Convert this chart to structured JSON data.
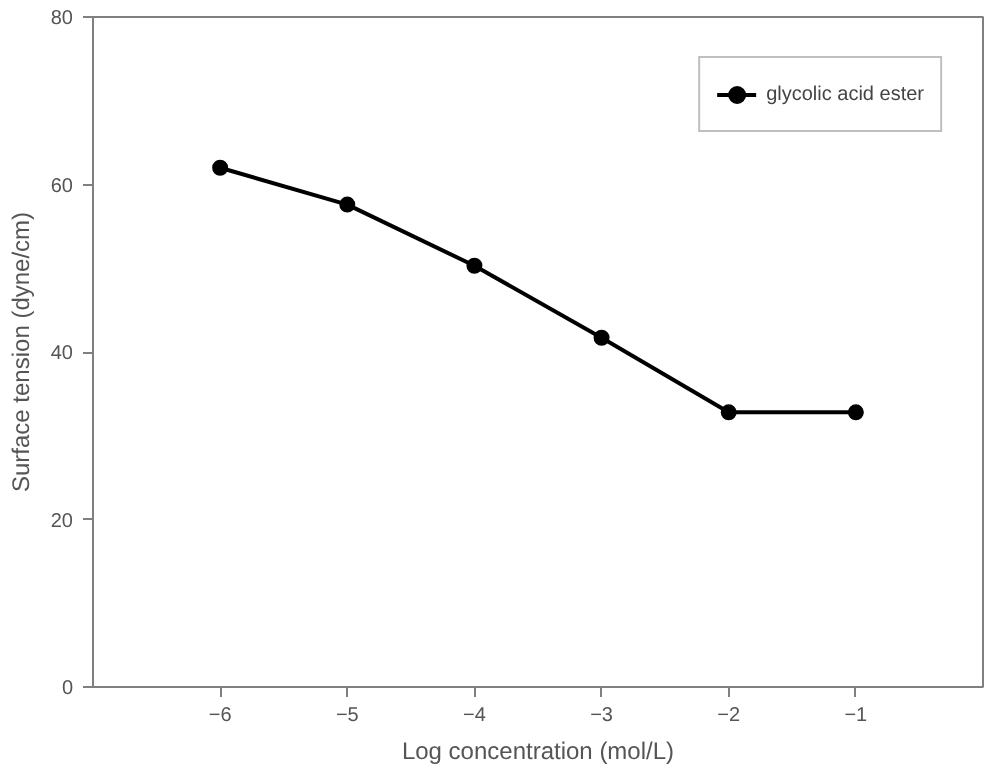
{
  "chart_data": {
    "type": "line",
    "xlabel": "Log concentration (mol/L)",
    "ylabel": "Surface tension (dyne/cm)",
    "x": [
      -6,
      -5,
      -4,
      -3,
      -2,
      -1
    ],
    "series": [
      {
        "name": "glycolic acid ester",
        "color": "#000000",
        "values": [
          62.0,
          57.6,
          50.3,
          41.7,
          32.8,
          32.8
        ]
      }
    ],
    "xlim": [
      -7,
      0
    ],
    "xticks": [
      -6,
      -5,
      -4,
      -3,
      -2,
      -1
    ],
    "ylim": [
      0,
      80
    ],
    "yticks": [
      0,
      20,
      40,
      60,
      80
    ],
    "grid": false,
    "legend": "top right",
    "marker": "circle",
    "line_style": "solid"
  }
}
